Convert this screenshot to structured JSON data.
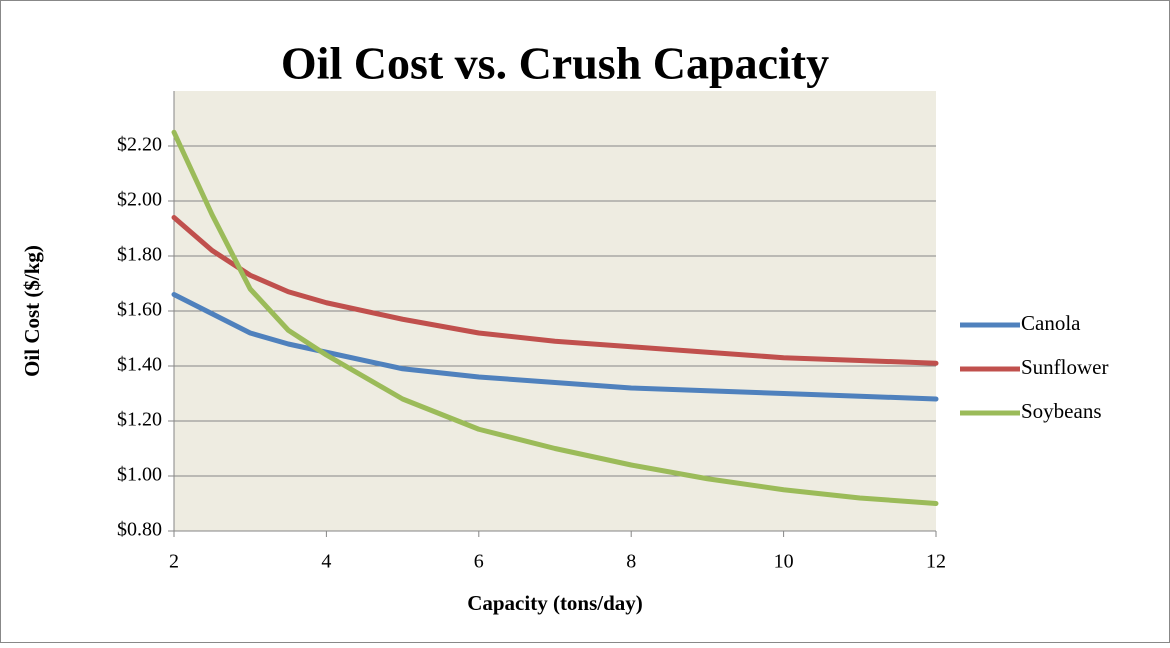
{
  "chart_data": {
    "type": "line",
    "title": "Oil Cost vs. Crush Capacity",
    "x_label": "Capacity (tons/day)",
    "y_label": "Oil Cost ($/kg)",
    "x": [
      2,
      2.5,
      3,
      3.5,
      4,
      5,
      6,
      7,
      8,
      9,
      10,
      11,
      12
    ],
    "series": [
      {
        "name": "Canola",
        "color": "#4f81bd",
        "values": [
          1.66,
          1.59,
          1.52,
          1.48,
          1.45,
          1.39,
          1.36,
          1.34,
          1.32,
          1.31,
          1.3,
          1.29,
          1.28
        ]
      },
      {
        "name": "Sunflower",
        "color": "#c0504d",
        "values": [
          1.94,
          1.82,
          1.73,
          1.67,
          1.63,
          1.57,
          1.52,
          1.49,
          1.47,
          1.45,
          1.43,
          1.42,
          1.41
        ]
      },
      {
        "name": "Soybeans",
        "color": "#9bbb59",
        "values": [
          2.25,
          1.95,
          1.68,
          1.53,
          1.44,
          1.28,
          1.17,
          1.1,
          1.04,
          0.99,
          0.95,
          0.92,
          0.9
        ]
      }
    ],
    "xlim": [
      2,
      12
    ],
    "xticks": [
      2,
      4,
      6,
      8,
      10,
      12
    ],
    "ylim": [
      0.8,
      2.4
    ],
    "yticks": [
      {
        "value": 0.8,
        "label": "$0.80"
      },
      {
        "value": 1.0,
        "label": "$1.00"
      },
      {
        "value": 1.2,
        "label": "$1.20"
      },
      {
        "value": 1.4,
        "label": "$1.40"
      },
      {
        "value": 1.6,
        "label": "$1.60"
      },
      {
        "value": 1.8,
        "label": "$1.80"
      },
      {
        "value": 2.0,
        "label": "$2.00"
      },
      {
        "value": 2.2,
        "label": "$2.20"
      }
    ],
    "grid": true,
    "legend": "right"
  }
}
